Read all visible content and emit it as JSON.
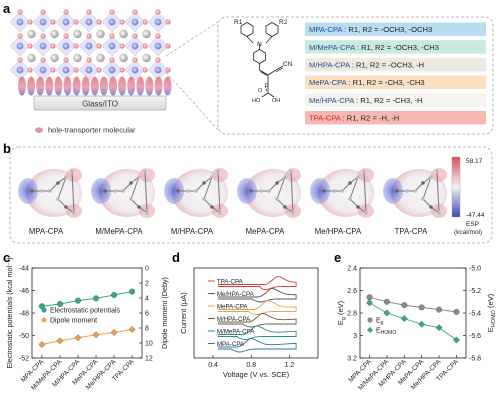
{
  "panel_labels": [
    "a",
    "b",
    "c",
    "d",
    "e"
  ],
  "panel_a": {
    "substrate_label": "Glass/ITO",
    "legend_label": "hole-transporter molecular",
    "structure": {
      "r1": "R1",
      "r2": "R2",
      "cn": "CN",
      "p": "P",
      "o": "O",
      "oh1": "HO",
      "oh2": "OH"
    },
    "molecules": [
      {
        "name": "MPA-CPA",
        "desc": "R1, R2 = -OCH3, -OCH3",
        "color": "#b9dcee"
      },
      {
        "name": "M/MePA-CPA",
        "desc": "R1, R2 = -OCH3, -CH3",
        "color": "#c9e9e1"
      },
      {
        "name": "M/HPA-CPA",
        "desc": "R1, R2 = -OCH3, -H",
        "color": "#efeadf"
      },
      {
        "name": "MePA-CPA",
        "desc": "R1, R2 = -CH3, -CH3",
        "color": "#fbdfc0"
      },
      {
        "name": "Me/HPA-CPA",
        "desc": "R1, R2 = -CH3, -H",
        "color": "#f6f3ee"
      },
      {
        "name": "TPA-CPA",
        "desc": "R1, R2 = -H, -H",
        "color": "#f7b8b2"
      }
    ]
  },
  "panel_b": {
    "labels": [
      "MPA-CPA",
      "M/MePA-CPA",
      "M/HPA-CPA",
      "MePA-CPA",
      "Me/HPA-CPA",
      "TPA-CPA"
    ],
    "colorbar_max": "58.17",
    "colorbar_min": "-47.44",
    "colorbar_unit1": "ESP",
    "colorbar_unit2": "(kcal/mol)"
  },
  "chart_data": [
    {
      "panel": "c",
      "type": "scatter",
      "categories": [
        "MPA-CPA",
        "M/MePA-CPA",
        "M/HPA-CPA",
        "MePA-CPA",
        "Me/HPA-CPA",
        "TPA-CPA"
      ],
      "series": [
        {
          "name": "Electrostatic potentials",
          "axis": "left",
          "values": [
            -47.4,
            -47.2,
            -46.9,
            -46.7,
            -46.4,
            -46.1
          ],
          "color": "#3aa58f"
        },
        {
          "name": "Dipole moment",
          "axis": "right",
          "values": [
            10.2,
            9.7,
            9.3,
            8.9,
            8.6,
            8.2
          ],
          "color": "#f0a04b"
        }
      ],
      "ylabel": "Electrostatic potentials (kcal mol⁻¹)",
      "ylabel2": "Dipole moment (Deby)",
      "ylim": [
        -44,
        -52
      ],
      "yticks": [
        -44,
        -46,
        -48,
        -50,
        -52
      ],
      "ylim2": [
        0,
        12
      ],
      "yticks2": [
        0,
        2,
        4,
        6,
        8,
        10,
        12
      ],
      "legend": "center"
    },
    {
      "panel": "d",
      "type": "line",
      "xlabel": "Voltage (V vs. SCE)",
      "ylabel": "Current (μA)",
      "xlim": [
        0.2,
        1.5
      ],
      "xticks": [
        0.4,
        0.8,
        1.2
      ],
      "series": [
        {
          "name": "TPA-CPA",
          "color": "#e03c3c",
          "onset": 0.95,
          "peak": 1.05
        },
        {
          "name": "Me/HPA-CPA",
          "color": "#555555",
          "onset": 0.88,
          "peak": 1.0
        },
        {
          "name": "MePA-CPA",
          "color": "#f0a04b",
          "onset": 0.83,
          "peak": 0.96
        },
        {
          "name": "M/HPA-CPA",
          "color": "#6b5b4a",
          "onset": 0.78,
          "peak": 0.9
        },
        {
          "name": "M/MePA-CPA",
          "color": "#2f8f86",
          "onset": 0.72,
          "peak": 0.84
        },
        {
          "name": "MPA-CPA",
          "color": "#3f6fa8",
          "onset": 0.66,
          "peak": 0.78
        }
      ],
      "legend": "inline"
    },
    {
      "panel": "e",
      "type": "scatter",
      "categories": [
        "MPA-CPA",
        "M/MePA-CPA",
        "M/HPA-CPA",
        "MePA-CPA",
        "Me/HPA-CPA",
        "TPA-CPA"
      ],
      "series": [
        {
          "name": "Eg",
          "axis": "left",
          "values": [
            2.66,
            2.7,
            2.73,
            2.75,
            2.77,
            2.79
          ],
          "color": "#8a8a8a"
        },
        {
          "name": "EHOMO",
          "axis": "right",
          "values": [
            -5.31,
            -5.4,
            -5.45,
            -5.5,
            -5.53,
            -5.64
          ],
          "color": "#3aa58f"
        }
      ],
      "ylabel": "Eg (eV)",
      "ylabel2": "EHOMO (eV)",
      "ylim": [
        2.4,
        3.2
      ],
      "yticks": [
        2.4,
        2.6,
        2.8,
        3.0,
        3.2
      ],
      "ylim2": [
        -5.0,
        -5.8
      ],
      "yticks2": [
        -5.0,
        -5.2,
        -5.4,
        -5.6,
        -5.8
      ],
      "legend": "bottom-left",
      "legend_labels": [
        {
          "main": "E",
          "sub": "g"
        },
        {
          "main": "E",
          "sub": "HOMO"
        }
      ]
    }
  ],
  "colors": {
    "accent_red": "#e03c3c",
    "accent_teal": "#3aa58f",
    "accent_orange": "#f0a04b"
  }
}
